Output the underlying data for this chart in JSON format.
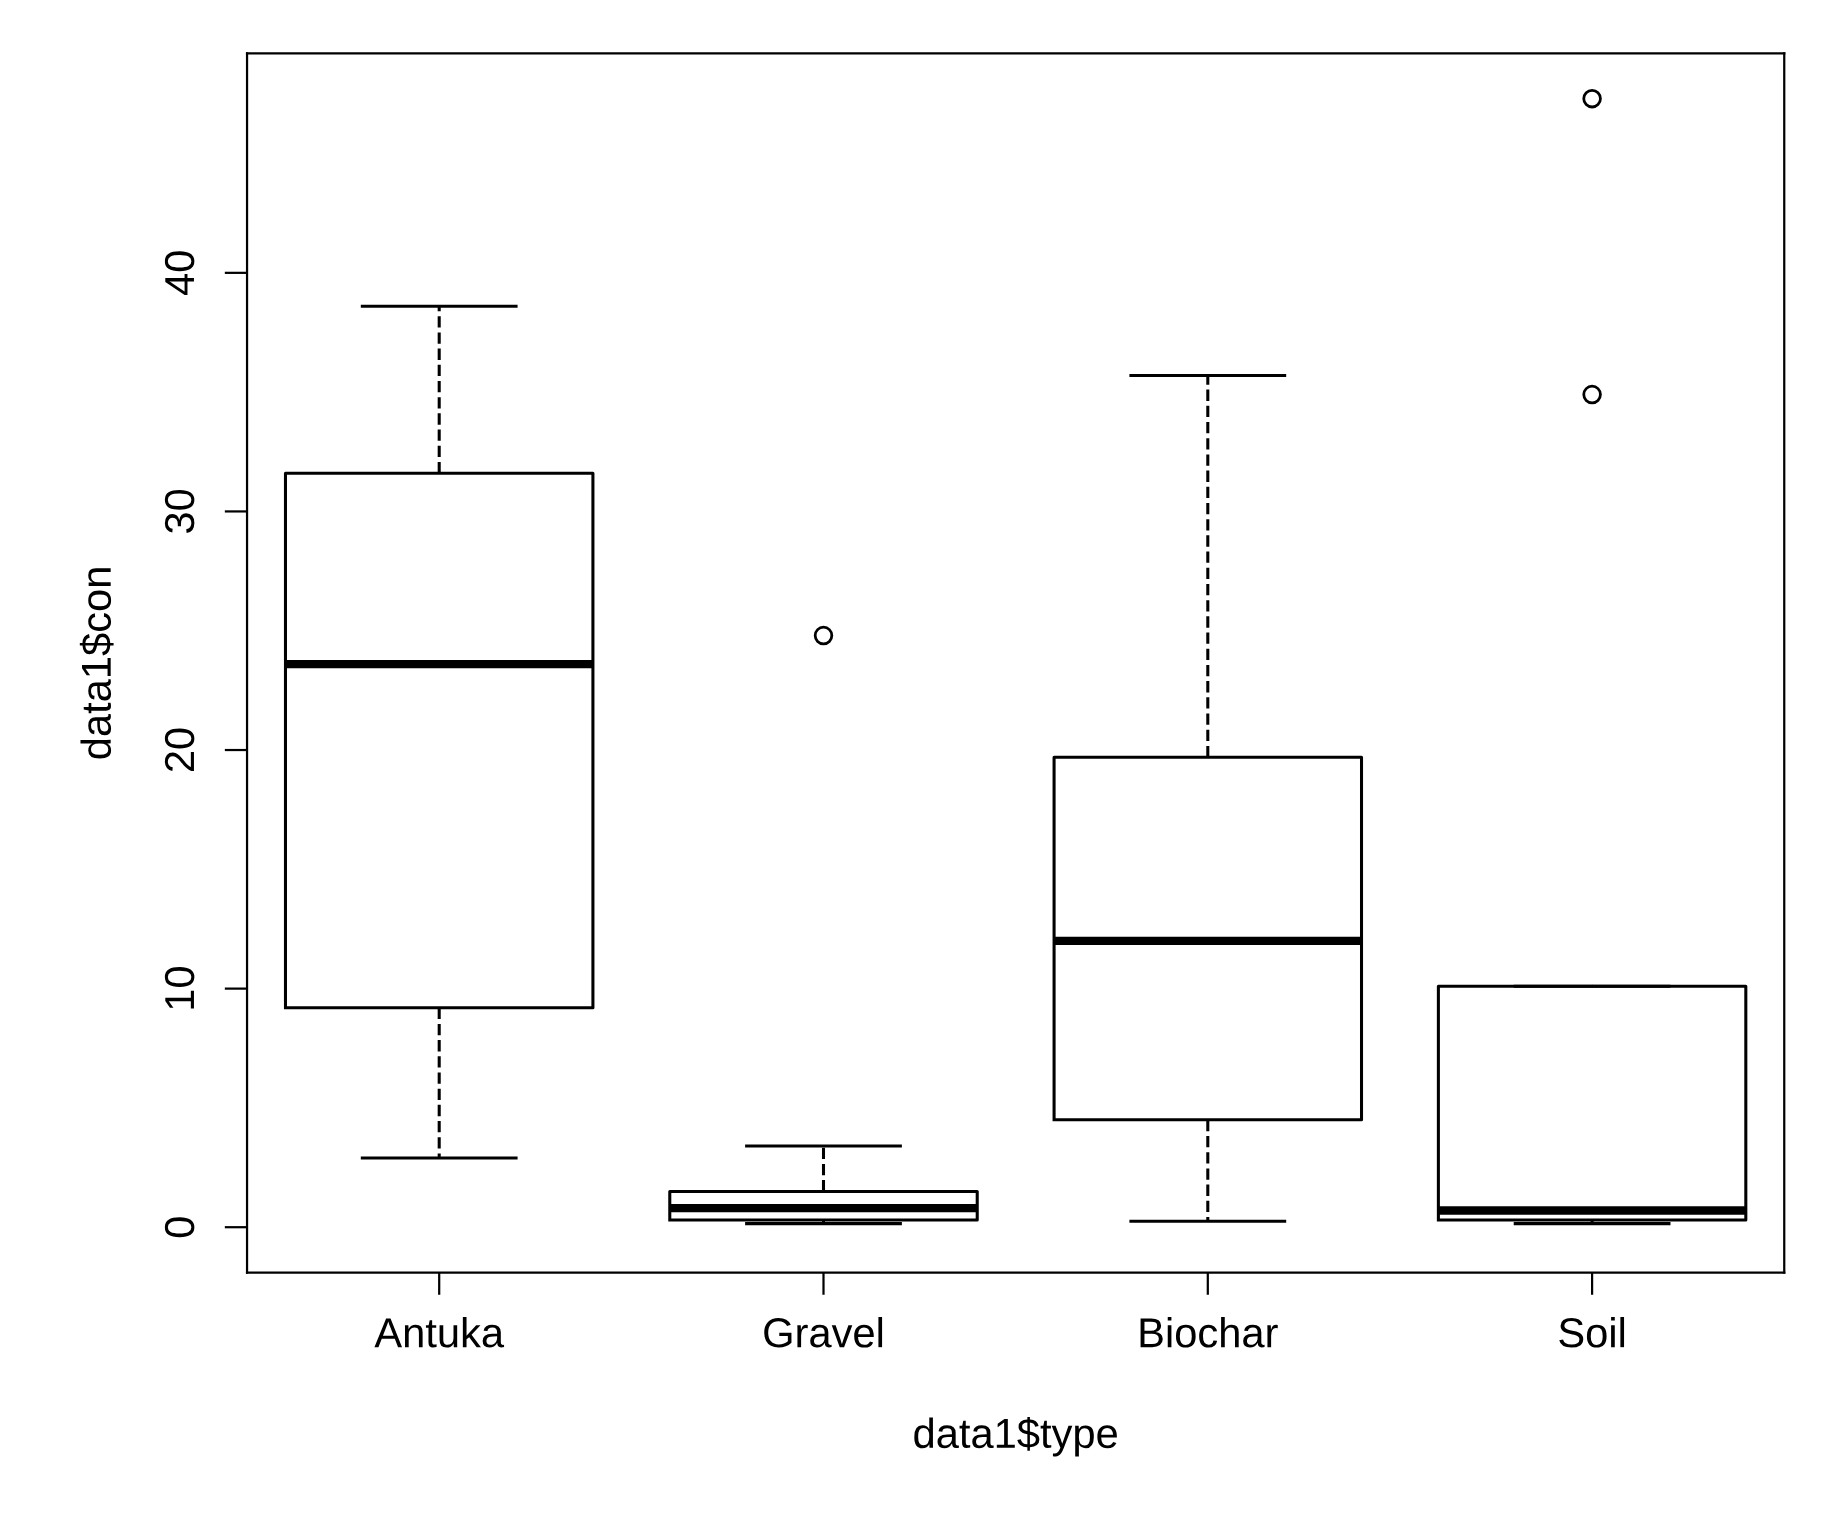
{
  "chart_data": {
    "type": "box",
    "xlabel": "data1$type",
    "ylabel": "data1$con",
    "categories": [
      "Antuka",
      "Gravel",
      "Biochar",
      "Soil"
    ],
    "boxes": [
      {
        "low": 2.9,
        "q1": 9.2,
        "median": 23.6,
        "q3": 31.6,
        "high": 38.6
      },
      {
        "low": 0.15,
        "q1": 0.3,
        "median": 0.8,
        "q3": 1.5,
        "high": 3.4,
        "outliers": [
          24.8
        ]
      },
      {
        "low": 0.25,
        "q1": 4.5,
        "median": 12.0,
        "q3": 19.7,
        "high": 35.7
      },
      {
        "low": 0.15,
        "q1": 0.3,
        "median": 0.7,
        "q3": 10.1,
        "high": 10.1,
        "outliers": [
          34.9,
          47.3
        ]
      }
    ],
    "color": "#000000",
    "ylim": [
      -1.9,
      49.2
    ],
    "yticks": [
      0,
      10,
      20,
      30,
      40
    ],
    "grid": false,
    "line_style": "dashed"
  }
}
